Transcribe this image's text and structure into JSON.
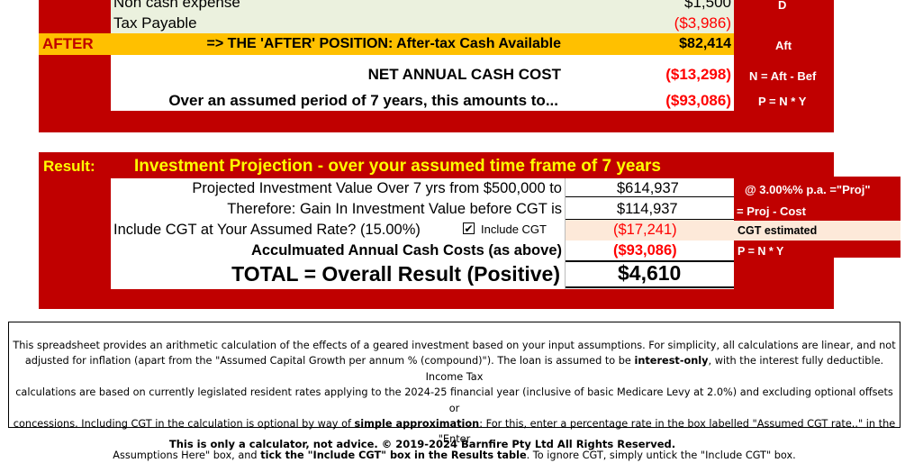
{
  "top": {
    "row_noncash": {
      "label": "Non cash expense",
      "value": "$1,500",
      "code": "D"
    },
    "row_tax": {
      "label": "Tax Payable",
      "value": "($3,986)"
    },
    "after": {
      "tag": "AFTER",
      "label": "=> THE 'AFTER' POSITION: After-tax Cash Available",
      "value": "$82,414",
      "code": "Aft"
    },
    "net_annual": {
      "label": "NET ANNUAL CASH COST",
      "value": "($13,298)",
      "formula": "N = Aft - Bef"
    },
    "period": {
      "label": "Over an assumed period of 7 years, this amounts to...",
      "value": "($93,086)",
      "formula": "P = N * Y"
    }
  },
  "result": {
    "tag": "Result:",
    "title": "Investment Projection - over your assumed time frame of 7 years",
    "rows": {
      "projected": {
        "label": "Projected Investment Value Over 7 yrs from $500,000 to",
        "value": "$614,937",
        "note": "@ 3.00%% p.a. =\"Proj\""
      },
      "gain": {
        "label": "Therefore:  Gain In Investment Value before CGT is",
        "value": "$114,937",
        "note": "= Proj - Cost"
      },
      "cgt": {
        "label": "Include CGT at Your Assumed Rate?  (15.00%)",
        "checkbox_label": "Include CGT",
        "checked": true,
        "check_mark": "✔",
        "value": "($17,241)",
        "note": "CGT estimated"
      },
      "accum": {
        "label": "Acculmuated Annual Cash Costs (as above)",
        "value": "($93,086)",
        "note": "P = N * Y"
      },
      "total": {
        "label": "TOTAL = Overall Result (Positive)",
        "value": "$4,610"
      }
    }
  },
  "disclaimer": {
    "line1": "This spreadsheet provides an arithmetic calculation of the effects of a geared investment based on your input assumptions. For simplicity, all calculations are linear, and not",
    "line2_a": "adjusted for inflation (apart from the \"Assumed Capital Growth per annum % (compound)\"). The loan is assumed to be ",
    "line2_b": "interest-only",
    "line2_c": ", with the interest fully deductible. Income Tax",
    "line3": "calculations are based on currently legislated resident rates applying to the 2024-25 financial  year (inclusive of basic Medicare Levy at 2.0%) and excluding optional offsets or",
    "line4_a": "concessions. Including CGT in the calculation is optional by way of ",
    "line4_b": "simple approximation",
    "line4_c": ": For this, enter a percentage rate in the box labelled \"Assumed CGT rate..\"  in the \"Enter",
    "line5_a": "Assumptions Here\" box, and ",
    "line5_b": "tick the \"Include CGT\" box in the Results table",
    "line5_c": ". To ignore CGT, simply untick the \"Include CGT\" box."
  },
  "footer": "This is only a calculator, not advice. © 2019-2024 Barnfire Pty Ltd All Rights Reserved."
}
